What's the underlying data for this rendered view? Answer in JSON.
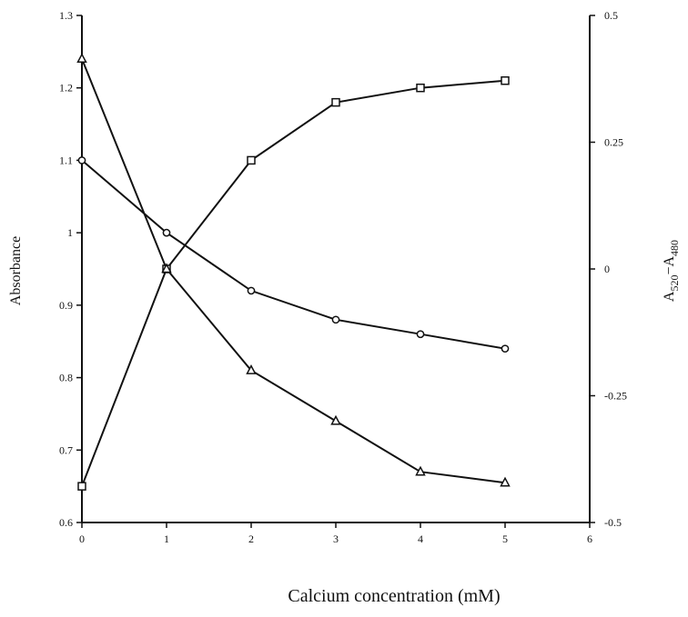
{
  "chart_data": {
    "type": "line",
    "xlabel": "Calcium concentration (mM)",
    "ylabel": "Absorbance",
    "ylabel_right": {
      "main": "A",
      "sub1": "520",
      "sep": "−A",
      "sub2": "480"
    },
    "xlim": [
      0,
      6
    ],
    "ylim": [
      0.6,
      1.3
    ],
    "ylim_right": [
      -0.5,
      0.5
    ],
    "xticks": [
      "0",
      "1",
      "2",
      "3",
      "4",
      "5",
      "6"
    ],
    "yticks": [
      "0.6",
      "0.7",
      "0.8",
      "0.9",
      "1",
      "1.1",
      "1.2",
      "1.3"
    ],
    "yticks_right": [
      "-0.5",
      "-0.25",
      "0",
      "0.25",
      "0.5"
    ],
    "grid": false,
    "x": [
      0,
      1,
      2,
      3,
      4,
      5
    ],
    "series": [
      {
        "marker": "square",
        "axis": "left",
        "values": [
          0.65,
          0.95,
          1.1,
          1.18,
          1.2,
          1.21
        ]
      },
      {
        "marker": "circle",
        "axis": "left",
        "values": [
          1.1,
          1.0,
          0.92,
          0.88,
          0.86,
          0.84
        ]
      },
      {
        "marker": "triangle",
        "axis": "left",
        "values": [
          1.24,
          0.95,
          0.81,
          0.74,
          0.67,
          0.655
        ]
      }
    ]
  }
}
